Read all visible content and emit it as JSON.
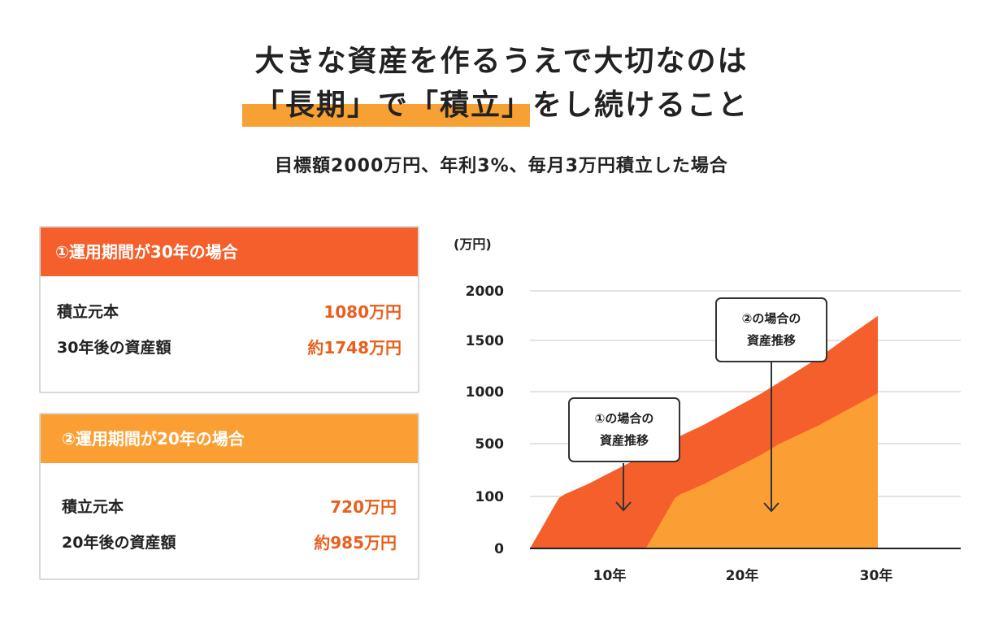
{
  "header": {
    "title_line1": "大きな資産を作るうえで大切なのは",
    "title_line2": "「長期」で「積立」をし続けること",
    "subtitle": "目標額2000万円、年利3%、毎月3万円積立した場合"
  },
  "cards": [
    {
      "title": "①運用期間が30年の場合",
      "rows": [
        {
          "label": "積立元本",
          "value": "1080万円"
        },
        {
          "label": "30年後の資産額",
          "value": "約1748万円"
        }
      ]
    },
    {
      "title": "②運用期間が20年の場合",
      "rows": [
        {
          "label": "積立元本",
          "value": "720万円"
        },
        {
          "label": "20年後の資産額",
          "value": "約985万円"
        }
      ]
    }
  ],
  "colors": {
    "series1": "#f55f2b",
    "series2": "#fb9f35",
    "grid": "#e3e3e3",
    "axis": "#222222"
  },
  "chart_data": {
    "type": "area",
    "unit_label": "(万円)",
    "y_ticks": [
      "2000",
      "1500",
      "1000",
      "500",
      "100",
      "0"
    ],
    "x_ticks": [
      "10年",
      "20年",
      "30年"
    ],
    "grid": true,
    "series": [
      {
        "name": "①の場合の資産推移",
        "start_year": 0,
        "end_year": 30,
        "final_value": 1748,
        "points": [
          [
            0,
            0
          ],
          [
            5,
            194
          ],
          [
            10,
            419
          ],
          [
            15,
            681
          ],
          [
            20,
            985
          ],
          [
            25,
            1338
          ],
          [
            30,
            1748
          ]
        ]
      },
      {
        "name": "②の場合の資産推移",
        "start_year": 10,
        "end_year": 30,
        "final_value": 985,
        "points": [
          [
            10,
            0
          ],
          [
            15,
            194
          ],
          [
            20,
            419
          ],
          [
            25,
            681
          ],
          [
            30,
            985
          ]
        ]
      }
    ],
    "callouts": [
      {
        "line1": "①の場合の",
        "line2": "資産推移"
      },
      {
        "line1": "②の場合の",
        "line2": "資産推移"
      }
    ]
  }
}
